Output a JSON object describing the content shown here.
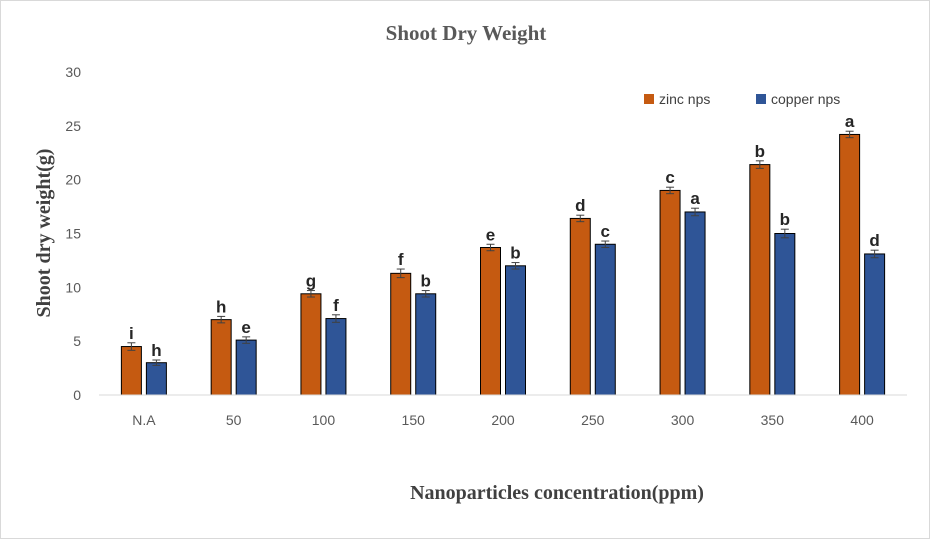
{
  "chart_data": {
    "type": "bar",
    "title": "Shoot Dry Weight",
    "xlabel": "Nanoparticles concentration(ppm)",
    "ylabel": "Shoot dry weight(g)",
    "ylim": [
      0,
      30
    ],
    "yticks": [
      "0",
      "5",
      "10",
      "15",
      "20",
      "25",
      "30"
    ],
    "categories": [
      "N.A",
      "50",
      "100",
      "150",
      "200",
      "250",
      "300",
      "350",
      "400"
    ],
    "legend_position": "top-right",
    "series": [
      {
        "name": "zinc nps",
        "color": "#c55a11",
        "values": [
          4.5,
          7.0,
          9.4,
          11.3,
          13.7,
          16.4,
          19.0,
          21.4,
          24.2
        ],
        "errors": [
          0.35,
          0.3,
          0.3,
          0.4,
          0.3,
          0.3,
          0.3,
          0.35,
          0.3
        ],
        "letters": [
          "i",
          "h",
          "g",
          "f",
          "e",
          "d",
          "c",
          "b",
          "a"
        ]
      },
      {
        "name": "copper nps",
        "color": "#2f5597",
        "values": [
          3.0,
          5.1,
          7.1,
          9.4,
          12.0,
          14.0,
          17.0,
          15.0,
          13.1
        ],
        "errors": [
          0.25,
          0.3,
          0.35,
          0.3,
          0.3,
          0.3,
          0.35,
          0.4,
          0.35
        ],
        "letters": [
          "h",
          "e",
          "f",
          "b",
          "b",
          "c",
          "a",
          "b",
          "d"
        ]
      }
    ]
  }
}
